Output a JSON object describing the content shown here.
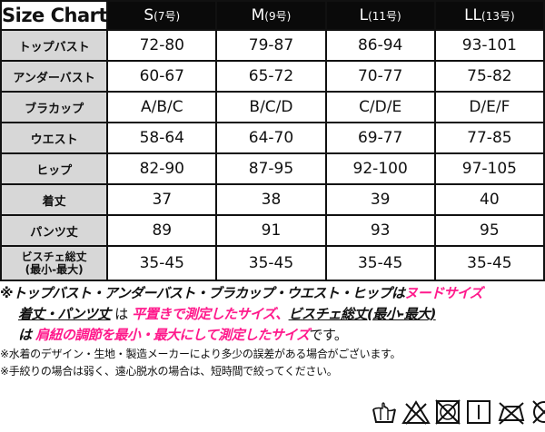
{
  "table": {
    "title": "Size Chart",
    "columns": [
      {
        "size": "S",
        "number": "(7号)"
      },
      {
        "size": "M",
        "number": "(9号)"
      },
      {
        "size": "L",
        "number": "(11号)"
      },
      {
        "size": "LL",
        "number": "(13号)"
      }
    ],
    "rows": [
      {
        "label": "トップバスト",
        "values": [
          "72-80",
          "79-87",
          "86-94",
          "93-101"
        ]
      },
      {
        "label": "アンダーバスト",
        "values": [
          "60-67",
          "65-72",
          "70-77",
          "75-82"
        ]
      },
      {
        "label": "ブラカップ",
        "values": [
          "A/B/C",
          "B/C/D",
          "C/D/E",
          "D/E/F"
        ]
      },
      {
        "label": "ウエスト",
        "values": [
          "58-64",
          "64-70",
          "69-77",
          "77-85"
        ]
      },
      {
        "label": "ヒップ",
        "values": [
          "82-90",
          "87-95",
          "92-100",
          "97-105"
        ]
      },
      {
        "label": "着丈",
        "values": [
          "37",
          "38",
          "39",
          "40"
        ]
      },
      {
        "label": "パンツ丈",
        "values": [
          "89",
          "91",
          "93",
          "95"
        ]
      },
      {
        "label": "ビスチェ総丈",
        "label_sub": "(最小-最大)",
        "values": [
          "35-45",
          "35-45",
          "35-45",
          "35-45"
        ]
      }
    ]
  },
  "notes": {
    "line1": {
      "part1": "※トップバスト・アンダーバスト・ブラカップ・ウエスト・ヒップは",
      "part2": "ヌードサイズ"
    },
    "line2": {
      "part1": "着丈・パンツ丈",
      "part2": "は",
      "part3": "平置きで測定したサイズ",
      "part4": "、",
      "part5": "ビスチェ総丈(最小-最大)"
    },
    "line3": {
      "part1": "は",
      "part2": "肩紐の調節を最小・最大にして測定したサイズ",
      "part3": "です。"
    },
    "line4": "※水着のデザイン・生地・製造メーカーにより多少の誤差がある場合がございます。",
    "line5": "※手絞りの場合は弱く、遠心脱水の場合は、短時間で絞ってください。"
  },
  "care_icons": [
    "hand-wash-icon",
    "no-bleach-icon",
    "no-tumble-dry-icon",
    "line-dry-icon",
    "no-iron-icon",
    "no-dry-clean-icon"
  ]
}
